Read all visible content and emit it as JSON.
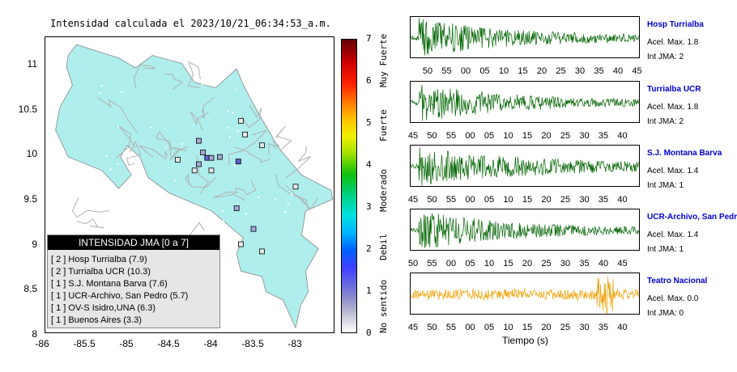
{
  "map": {
    "title": "Intensidad calculada el 2023/10/21_06:34:53_a.m.",
    "lat_ticks": [
      "11",
      "10.5",
      "10",
      "9.5",
      "9",
      "8.5",
      "8"
    ],
    "lon_ticks": [
      "-86",
      "-85.5",
      "-85",
      "-84.5",
      "-84",
      "-83.5",
      "-83"
    ],
    "land_color": "#aeeeed",
    "stations": [
      {
        "lon": -83.68,
        "lat": 9.9,
        "jma": 2
      },
      {
        "lon": -84.05,
        "lat": 9.94,
        "jma": 2
      },
      {
        "lon": -84.1,
        "lat": 10.0,
        "jma": 1
      },
      {
        "lon": -84.0,
        "lat": 9.94,
        "jma": 1
      },
      {
        "lon": -84.15,
        "lat": 9.87,
        "jma": 1
      },
      {
        "lon": -83.5,
        "lat": 9.15,
        "jma": 1
      },
      {
        "lon": -83.65,
        "lat": 10.35,
        "jma": 0
      },
      {
        "lon": -83.6,
        "lat": 10.2,
        "jma": 0
      },
      {
        "lon": -83.4,
        "lat": 10.08,
        "jma": 0
      },
      {
        "lon": -84.15,
        "lat": 10.13,
        "jma": 1
      },
      {
        "lon": -84.4,
        "lat": 9.92,
        "jma": 0
      },
      {
        "lon": -83.0,
        "lat": 9.62,
        "jma": 0
      },
      {
        "lon": -83.7,
        "lat": 9.38,
        "jma": 1
      },
      {
        "lon": -83.65,
        "lat": 8.98,
        "jma": 0
      },
      {
        "lon": -83.4,
        "lat": 8.9,
        "jma": 0
      },
      {
        "lon": -84.2,
        "lat": 9.8,
        "jma": 0
      },
      {
        "lon": -84.0,
        "lat": 9.8,
        "jma": 0
      },
      {
        "lon": -83.9,
        "lat": 9.95,
        "jma": 1
      }
    ]
  },
  "legend": {
    "header": "INTENSIDAD JMA [0 a 7]",
    "rows": [
      "[ 2 ]  Hosp Turrialba (7.9)",
      "[ 2 ]  Turrialba UCR (10.3)",
      "[ 1 ]  S.J. Montana Barva (7.6)",
      "[ 1 ]  UCR-Archivo, San Pedro (5.7)",
      "[ 1 ]  OV-S Isidro,UNA (6.3)",
      "[ 1 ]  Buenos Aires (3.3)"
    ]
  },
  "colorbar": {
    "ticks": [
      "0",
      "1",
      "2",
      "3",
      "4",
      "5",
      "6",
      "7"
    ],
    "labels": [
      "No sentido",
      "Debil",
      "Moderado",
      "Fuerte",
      "Muy Fuerte"
    ]
  },
  "traces": [
    {
      "name": "Hosp Turrialba",
      "acel": "Acel. Max. 1.8",
      "jma": "Int JMA: 2",
      "color": "#006400",
      "ticks": [
        "50",
        "55",
        "00",
        "05",
        "10",
        "15",
        "20",
        "25",
        "30",
        "35",
        "40",
        "45"
      ]
    },
    {
      "name": "Turrialba UCR",
      "acel": "Acel. Max. 1.8",
      "jma": "Int JMA: 2",
      "color": "#006400",
      "ticks": [
        "45",
        "50",
        "55",
        "00",
        "05",
        "10",
        "15",
        "20",
        "25",
        "30",
        "35",
        "40"
      ]
    },
    {
      "name": "S.J. Montana Barva",
      "acel": "Acel. Max. 1.4",
      "jma": "Int JMA: 1",
      "color": "#006400",
      "ticks": [
        "45",
        "50",
        "55",
        "00",
        "05",
        "10",
        "15",
        "20",
        "25",
        "30",
        "35",
        "40"
      ]
    },
    {
      "name": "UCR-Archivo, San Pedro",
      "acel": "Acel. Max. 1.4",
      "jma": "Int JMA: 1",
      "color": "#006400",
      "ticks": [
        "50",
        "55",
        "00",
        "05",
        "10",
        "15",
        "20",
        "25",
        "30",
        "35",
        "40",
        "45"
      ]
    },
    {
      "name": "Teatro Nacional",
      "acel": "Acel. Max. 0.0",
      "jma": "Int JMA: 0",
      "color": "#f0a000",
      "ticks": [
        "45",
        "50",
        "55",
        "00",
        "05",
        "10",
        "15",
        "20",
        "25",
        "30",
        "35",
        "40"
      ]
    }
  ],
  "xlabel": "Tiempo (s)"
}
